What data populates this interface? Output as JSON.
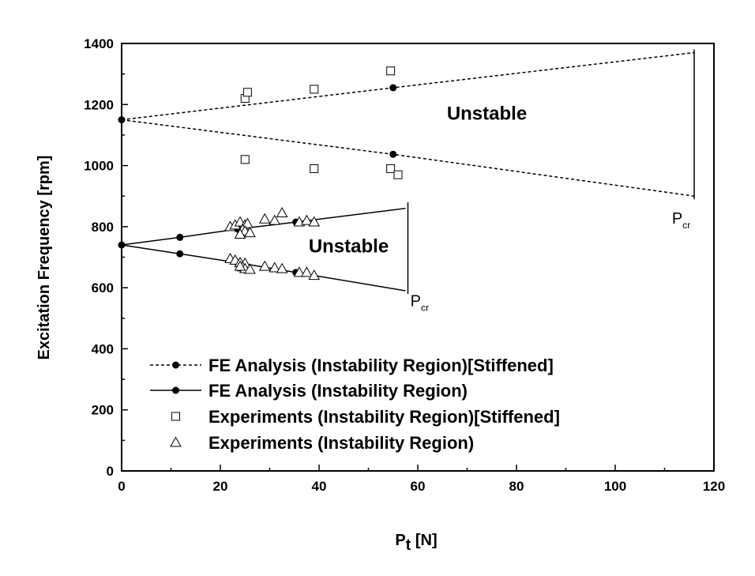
{
  "chart_data": {
    "type": "scatter",
    "xlabel_main": "P",
    "xlabel_sub": "t",
    "xlabel_unit": " [N]",
    "ylabel": "Excitation Frequency [rpm]",
    "xlim": [
      0,
      120
    ],
    "ylim": [
      0,
      1400
    ],
    "x_ticks": [
      "0",
      "20",
      "40",
      "60",
      "80",
      "100",
      "120"
    ],
    "y_ticks": [
      "0",
      "200",
      "400",
      "600",
      "800",
      "1000",
      "1200",
      "1400"
    ],
    "grid": false,
    "legend_position": "bottom-left",
    "series": [
      {
        "name": "FE Analysis (Instability Region)[Stiffened]",
        "style": "dashed-line-with-filled-circles",
        "upper": [
          [
            0,
            1150
          ],
          [
            55,
            1255
          ],
          [
            116,
            1370
          ]
        ],
        "lower": [
          [
            0,
            1150
          ],
          [
            55,
            1037
          ],
          [
            116,
            900
          ]
        ],
        "markers": [
          [
            0,
            1150
          ],
          [
            55,
            1255
          ],
          [
            55,
            1037
          ]
        ]
      },
      {
        "name": "FE Analysis (Instability Region)",
        "style": "solid-line-with-filled-circles",
        "upper": [
          [
            0,
            740
          ],
          [
            11.8,
            765
          ],
          [
            23.5,
            792
          ],
          [
            35.3,
            815
          ],
          [
            57.5,
            860
          ]
        ],
        "lower": [
          [
            0,
            740
          ],
          [
            11.8,
            711
          ],
          [
            23.5,
            682
          ],
          [
            35.3,
            650
          ],
          [
            57.5,
            590
          ]
        ],
        "markers": [
          [
            0,
            740
          ],
          [
            11.8,
            765
          ],
          [
            23.5,
            792
          ],
          [
            35.3,
            815
          ],
          [
            11.8,
            711
          ],
          [
            23.5,
            682
          ],
          [
            35.3,
            650
          ]
        ]
      },
      {
        "name": "Experiments (Instability Region)[Stiffened]",
        "style": "open-square",
        "points": [
          [
            25,
            1220
          ],
          [
            25.5,
            1240
          ],
          [
            39,
            1250
          ],
          [
            54.5,
            1310
          ],
          [
            25,
            1020
          ],
          [
            39,
            990
          ],
          [
            54.5,
            990
          ],
          [
            56,
            970
          ]
        ]
      },
      {
        "name": "Experiments (Instability Region)",
        "style": "open-triangle",
        "points": [
          [
            22,
            800
          ],
          [
            23,
            805
          ],
          [
            24,
            815
          ],
          [
            25,
            805
          ],
          [
            25.5,
            810
          ],
          [
            24.5,
            790
          ],
          [
            25,
            785
          ],
          [
            26,
            780
          ],
          [
            24,
            775
          ],
          [
            29,
            825
          ],
          [
            31,
            820
          ],
          [
            32.5,
            845
          ],
          [
            36,
            815
          ],
          [
            37.5,
            820
          ],
          [
            39,
            815
          ],
          [
            22,
            695
          ],
          [
            23,
            690
          ],
          [
            24,
            682
          ],
          [
            25,
            680
          ],
          [
            24.5,
            668
          ],
          [
            25,
            662
          ],
          [
            26,
            660
          ],
          [
            24,
            670
          ],
          [
            29,
            670
          ],
          [
            31,
            665
          ],
          [
            32.5,
            662
          ],
          [
            36,
            650
          ],
          [
            37.5,
            650
          ],
          [
            39,
            640
          ]
        ]
      }
    ],
    "annotations": [
      {
        "text": "Unstable",
        "x": 74,
        "y": 1150
      },
      {
        "text": "Unstable",
        "x": 46,
        "y": 715
      }
    ],
    "pcr_lines": [
      {
        "x": 58,
        "y_from": 580,
        "y_to": 880,
        "label_main": "P",
        "label_sub": "cr",
        "label_x": 58.5,
        "label_y": 540
      },
      {
        "x": 116,
        "y_from": 890,
        "y_to": 1380,
        "label_main": "P",
        "label_sub": "cr",
        "label_x": 111.5,
        "label_y": 810
      }
    ]
  }
}
